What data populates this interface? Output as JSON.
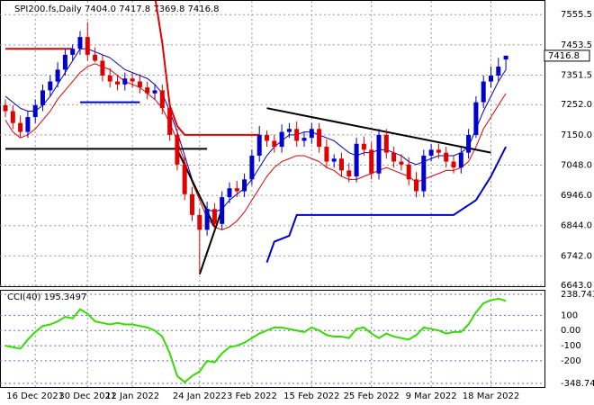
{
  "chart_data": {
    "type": "candlestick",
    "header": "SPI200.fs,Daily  7404.0 7417.8 7369.8 7416.8",
    "price_tag": {
      "value": 7416.8,
      "label": "7416.8"
    },
    "categories": [
      null,
      null,
      null,
      null,
      "16 Dec 2021",
      null,
      null,
      null,
      null,
      null,
      null,
      "30 Dec 2021",
      null,
      null,
      null,
      null,
      null,
      "12 Jan 2022",
      null,
      null,
      null,
      null,
      null,
      null,
      null,
      null,
      "24 Jan 2022",
      null,
      null,
      null,
      null,
      null,
      null,
      "3 Feb 2022",
      null,
      null,
      null,
      null,
      null,
      null,
      null,
      "15 Feb 2022",
      null,
      null,
      null,
      null,
      null,
      null,
      null,
      "25 Feb 2022",
      null,
      null,
      null,
      null,
      null,
      null,
      null,
      "9 Mar 2022",
      null,
      null,
      null,
      null,
      null,
      null,
      null,
      "18 Mar 2022",
      null,
      null
    ],
    "open": [
      7250,
      7230,
      7190,
      7160,
      7210,
      7250,
      7300,
      7330,
      7370,
      7420,
      7440,
      7480,
      7420,
      7400,
      7350,
      7330,
      7320,
      7340,
      7330,
      7310,
      7290,
      7300,
      7240,
      7150,
      7050,
      6950,
      6880,
      6830,
      6900,
      6850,
      6940,
      6970,
      6960,
      7000,
      7080,
      7150,
      7130,
      7110,
      7160,
      7170,
      7130,
      7140,
      7170,
      7110,
      7060,
      7070,
      7030,
      7010,
      7120,
      7100,
      7020,
      7150,
      7090,
      7060,
      7050,
      7000,
      6960,
      7080,
      7100,
      7090,
      7060,
      7040,
      7090,
      7150,
      7260,
      7330,
      7350,
      7404
    ],
    "high": [
      7270,
      7250,
      7215,
      7230,
      7270,
      7320,
      7350,
      7395,
      7440,
      7455,
      7500,
      7530,
      7445,
      7420,
      7375,
      7350,
      7360,
      7360,
      7355,
      7330,
      7320,
      7320,
      7260,
      7170,
      7075,
      6975,
      6900,
      6925,
      6920,
      6960,
      6990,
      6995,
      7020,
      7100,
      7180,
      7165,
      7150,
      7185,
      7190,
      7195,
      7160,
      7190,
      7190,
      7135,
      7085,
      7090,
      7055,
      7140,
      7145,
      7125,
      7170,
      7170,
      7110,
      7085,
      7075,
      7025,
      7100,
      7120,
      7120,
      7110,
      7080,
      7110,
      7170,
      7280,
      7350,
      7380,
      7410,
      7417.8
    ],
    "low": [
      7210,
      7170,
      7140,
      7140,
      7190,
      7230,
      7280,
      7310,
      7350,
      7400,
      7420,
      7400,
      7395,
      7330,
      7310,
      7300,
      7300,
      7310,
      7290,
      7270,
      7270,
      7220,
      7130,
      7030,
      6930,
      6860,
      6680,
      6810,
      6830,
      6830,
      6920,
      6940,
      6940,
      6980,
      7060,
      7110,
      7090,
      7090,
      7140,
      7110,
      7110,
      7120,
      7090,
      7040,
      7040,
      7010,
      6990,
      6990,
      7080,
      7000,
      7000,
      7070,
      7040,
      7030,
      6980,
      6940,
      6940,
      7060,
      7070,
      7040,
      7020,
      7020,
      7070,
      7140,
      7240,
      7310,
      7330,
      7369.8
    ],
    "close": [
      7230,
      7190,
      7160,
      7210,
      7250,
      7300,
      7330,
      7370,
      7420,
      7440,
      7480,
      7420,
      7400,
      7350,
      7330,
      7320,
      7340,
      7330,
      7310,
      7290,
      7300,
      7240,
      7150,
      7050,
      6950,
      6880,
      6830,
      6900,
      6850,
      6940,
      6970,
      6960,
      7000,
      7080,
      7150,
      7130,
      7110,
      7160,
      7170,
      7130,
      7140,
      7170,
      7110,
      7060,
      7070,
      7030,
      7010,
      7120,
      7100,
      7020,
      7150,
      7090,
      7060,
      7050,
      7000,
      6960,
      7080,
      7100,
      7090,
      7060,
      7040,
      7090,
      7150,
      7260,
      7330,
      7350,
      7380,
      7416.8
    ],
    "bull_color": "#0000cc",
    "bear_color": "#e00000",
    "ylim": [
      6640,
      7601.6
    ],
    "yticks": [
      7555.5,
      7453.5,
      7351.5,
      {
        "value": 7252,
        "label": "7252.0"
      },
      {
        "value": 7150,
        "label": "7150.0"
      },
      {
        "value": 7048,
        "label": "7048.0"
      },
      {
        "value": 6946,
        "label": "6946.0"
      },
      {
        "value": 6844,
        "label": "6844.0"
      },
      {
        "value": 6742,
        "label": "6742.0"
      },
      {
        "value": 6643,
        "label": "6643.0"
      }
    ],
    "series": [
      {
        "color": "#0000cc",
        "values": [
          7280,
          7260,
          7240,
          7230,
          7230,
          7250,
          7280,
          7320,
          7360,
          7400,
          7440,
          7440,
          7430,
          7420,
          7410,
          7390,
          7370,
          7360,
          7350,
          7340,
          7320,
          7290,
          7230,
          7160,
          7080,
          7000,
          6940,
          6900,
          6890,
          6900,
          6930,
          6950,
          6970,
          7000,
          7040,
          7080,
          7110,
          7130,
          7150,
          7150,
          7160,
          7160,
          7150,
          7140,
          7130,
          7110,
          7090,
          7080,
          7090,
          7090,
          7100,
          7100,
          7090,
          7080,
          7060,
          7050,
          7060,
          7070,
          7080,
          7080,
          7080,
          7090,
          7110,
          7170,
          7230,
          7280,
          7330,
          7370
        ]
      },
      {
        "color": "#e00000",
        "values": [
          7200,
          7160,
          7140,
          7150,
          7170,
          7200,
          7230,
          7270,
          7300,
          7330,
          7360,
          7380,
          7390,
          7380,
          7370,
          7350,
          7330,
          7320,
          7310,
          7290,
          7270,
          7240,
          7190,
          7130,
          7060,
          6990,
          6930,
          6870,
          6840,
          6830,
          6840,
          6860,
          6890,
          6930,
          6970,
          7010,
          7040,
          7060,
          7070,
          7080,
          7080,
          7070,
          7060,
          7040,
          7030,
          7010,
          7000,
          7000,
          7010,
          7020,
          7030,
          7040,
          7030,
          7020,
          7010,
          6990,
          7000,
          7010,
          7020,
          7030,
          7030,
          7040,
          7060,
          7110,
          7170,
          7210,
          7250,
          7290
        ]
      }
    ],
    "lines": [
      {
        "color": "#e00000",
        "x": [
          0,
          9
        ],
        "y": [
          7440,
          7440
        ]
      },
      {
        "color": "#e00000",
        "x": [
          20,
          21,
          22,
          23,
          24,
          34
        ],
        "y": [
          7620,
          7460,
          7250,
          7180,
          7150,
          7150
        ]
      },
      {
        "color": "#0000cc",
        "x": [
          10,
          18
        ],
        "y": [
          7260,
          7260
        ]
      },
      {
        "color": "#000000",
        "x": [
          0,
          27
        ],
        "y": [
          7103,
          7103
        ]
      },
      {
        "color": "#000000",
        "x": [
          35,
          65
        ],
        "y": [
          7240,
          7090
        ]
      },
      {
        "color": "#000000",
        "x": [
          23,
          28
        ],
        "y": [
          7100,
          6840
        ]
      },
      {
        "color": "#000000",
        "x": [
          26,
          29
        ],
        "y": [
          6680,
          6900
        ]
      },
      {
        "color": "#0000cc",
        "x": [
          35,
          36,
          38,
          39,
          60,
          63,
          65,
          67
        ],
        "y": [
          6720,
          6790,
          6810,
          6880,
          6880,
          6930,
          7010,
          7110
        ]
      }
    ],
    "cci": {
      "label": "CCI(40) 195.3497",
      "color": "#33dd00",
      "values": [
        -100,
        -110,
        -120,
        -60,
        -10,
        30,
        40,
        60,
        90,
        80,
        140,
        110,
        60,
        50,
        40,
        50,
        40,
        40,
        30,
        20,
        0,
        -40,
        -150,
        -300,
        -340,
        -300,
        -270,
        -200,
        -210,
        -150,
        -110,
        -100,
        -80,
        -50,
        -20,
        0,
        20,
        20,
        10,
        0,
        -10,
        20,
        0,
        -30,
        -40,
        -40,
        -50,
        10,
        20,
        -20,
        -50,
        -20,
        -40,
        -50,
        -60,
        -30,
        20,
        10,
        0,
        -20,
        -10,
        -10,
        40,
        120,
        180,
        200,
        210,
        195.3497
      ],
      "ylim": [
        -348.7425,
        238.7437
      ],
      "yticks": [
        238.7437,
        100,
        {
          "value": 0,
          "label": "0.00"
        },
        -100,
        -200,
        -348.7425
      ]
    }
  }
}
